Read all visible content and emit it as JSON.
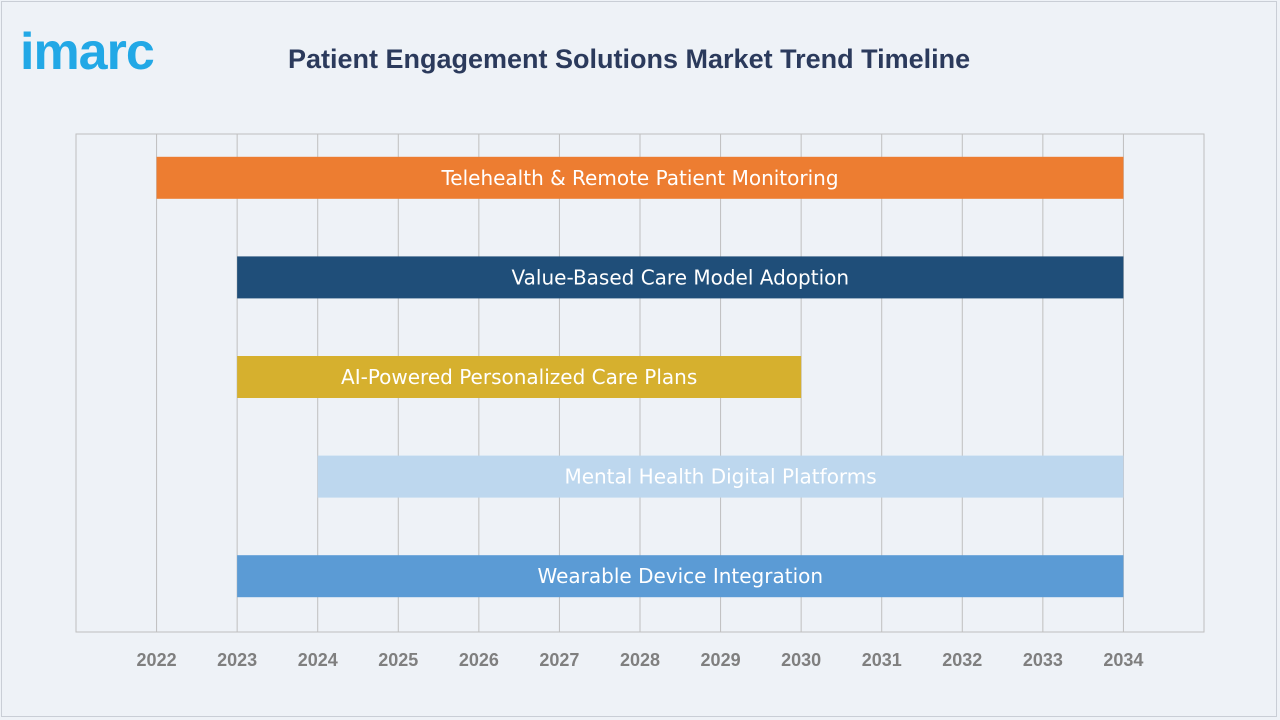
{
  "header": {
    "logo_text": "imarc",
    "title": "Patient Engagement Solutions Market Trend Timeline"
  },
  "chart_data": {
    "type": "bar",
    "orientation": "horizontal-timeline",
    "title": "Patient Engagement Solutions Market Trend Timeline",
    "xlabel": "",
    "ylabel": "",
    "xlim": [
      2021,
      2035
    ],
    "x_ticks": [
      2022,
      2023,
      2024,
      2025,
      2026,
      2027,
      2028,
      2029,
      2030,
      2031,
      2032,
      2033,
      2034
    ],
    "grid": true,
    "legend": "none",
    "series": [
      {
        "label": "Telehealth & Remote Patient Monitoring",
        "start": 2022,
        "end": 2034,
        "color": "#ed7d31",
        "text_color": "#ffffff"
      },
      {
        "label": "Value-Based Care Model Adoption",
        "start": 2023,
        "end": 2034,
        "color": "#1f4e79",
        "text_color": "#ffffff"
      },
      {
        "label": "AI-Powered Personalized Care Plans",
        "start": 2023,
        "end": 2030,
        "color": "#d6b02e",
        "text_color": "#ffffff"
      },
      {
        "label": "Mental Health Digital Platforms",
        "start": 2024,
        "end": 2034,
        "color": "#bdd7ee",
        "text_color": "#ffffff"
      },
      {
        "label": "Wearable Device Integration",
        "start": 2023,
        "end": 2034,
        "color": "#5b9bd5",
        "text_color": "#ffffff"
      }
    ]
  }
}
